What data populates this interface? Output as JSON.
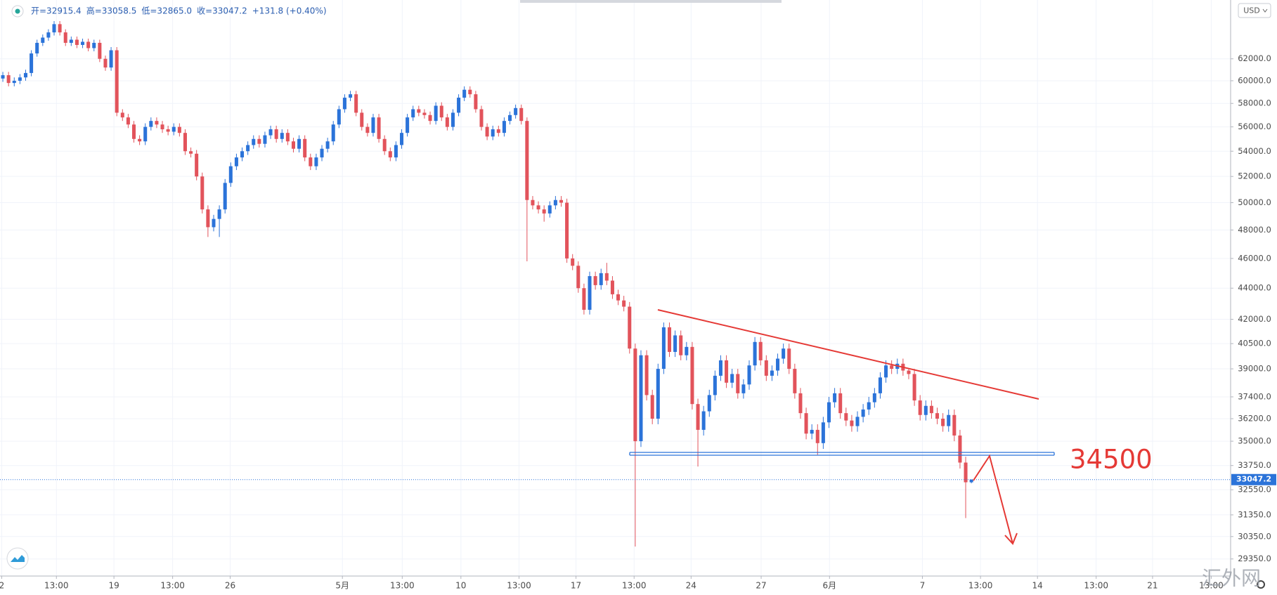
{
  "chart_data": {
    "type": "candlestick",
    "header": [
      "开=32915.4",
      "高=33058.5",
      "低=32865.0",
      "收=33047.2",
      "+131.8 (+0.40%)"
    ],
    "currency": "USD",
    "annotation": "34500",
    "watermark": "汇外网",
    "log": true,
    "grid": true,
    "up_color": "#2b73d9",
    "down_color": "#e2535b",
    "ylim": [
      28610,
      67700
    ],
    "xlim": [
      0,
      216
    ],
    "yticks": [
      {
        "value": 62000,
        "label": "62000.0"
      },
      {
        "value": 60000,
        "label": "60000.0"
      },
      {
        "value": 58000,
        "label": "58000.0"
      },
      {
        "value": 56000,
        "label": "56000.0"
      },
      {
        "value": 54000,
        "label": "54000.0"
      },
      {
        "value": 52000,
        "label": "52000.0"
      },
      {
        "value": 50000,
        "label": "50000.0"
      },
      {
        "value": 48000,
        "label": "48000.0"
      },
      {
        "value": 46000,
        "label": "46000.0"
      },
      {
        "value": 44000,
        "label": "44000.0"
      },
      {
        "value": 42000,
        "label": "42000.0"
      },
      {
        "value": 40500,
        "label": "40500.0"
      },
      {
        "value": 39000,
        "label": "39000.0"
      },
      {
        "value": 37400,
        "label": "37400.0"
      },
      {
        "value": 36200,
        "label": "36200.0"
      },
      {
        "value": 35000,
        "label": "35000.0"
      },
      {
        "value": 33750,
        "label": "33750.0"
      },
      {
        "value": 32550,
        "label": "32550.0"
      },
      {
        "value": 31350,
        "label": "31350.0"
      },
      {
        "value": 30350,
        "label": "30350.0"
      },
      {
        "value": 29350,
        "label": "29350.0"
      }
    ],
    "xticks": [
      {
        "value": 0.3,
        "label": "2"
      },
      {
        "value": 9.9,
        "label": "13:00"
      },
      {
        "value": 20,
        "label": "19"
      },
      {
        "value": 30.3,
        "label": "13:00"
      },
      {
        "value": 40.4,
        "label": "26"
      },
      {
        "value": 60.1,
        "label": "5月"
      },
      {
        "value": 70.6,
        "label": "13:00"
      },
      {
        "value": 80.9,
        "label": "10"
      },
      {
        "value": 91.1,
        "label": "13:00"
      },
      {
        "value": 101.1,
        "label": "17"
      },
      {
        "value": 111.3,
        "label": "13:00"
      },
      {
        "value": 121.3,
        "label": "24"
      },
      {
        "value": 133.6,
        "label": "27"
      },
      {
        "value": 145.6,
        "label": "6月"
      },
      {
        "value": 161.9,
        "label": "7"
      },
      {
        "value": 172.1,
        "label": "13:00"
      },
      {
        "value": 182.1,
        "label": "14"
      },
      {
        "value": 192.4,
        "label": "13:00"
      },
      {
        "value": 202.3,
        "label": "21"
      },
      {
        "value": 212.6,
        "label": "13:00"
      }
    ],
    "ohlc": [
      [
        60200,
        60800,
        59900,
        60500
      ],
      [
        60500,
        60800,
        59500,
        59800
      ],
      [
        59800,
        60300,
        59500,
        60000
      ],
      [
        60000,
        60600,
        59700,
        60300
      ],
      [
        60300,
        61000,
        60000,
        60700
      ],
      [
        60700,
        62800,
        60400,
        62500
      ],
      [
        62500,
        63800,
        62200,
        63500
      ],
      [
        63500,
        64300,
        63200,
        64000
      ],
      [
        64000,
        64800,
        63700,
        64500
      ],
      [
        64500,
        65600,
        64200,
        65300
      ],
      [
        65300,
        65600,
        64200,
        64500
      ],
      [
        64500,
        64800,
        63200,
        63500
      ],
      [
        63500,
        64100,
        63200,
        63800
      ],
      [
        63800,
        64100,
        63000,
        63300
      ],
      [
        63300,
        63900,
        63000,
        63600
      ],
      [
        63600,
        63900,
        62700,
        63000
      ],
      [
        63000,
        63800,
        62700,
        63500
      ],
      [
        63500,
        63800,
        61700,
        62000
      ],
      [
        62000,
        62300,
        60900,
        61200
      ],
      [
        61200,
        63100,
        60900,
        62800
      ],
      [
        62800,
        63100,
        56900,
        57200
      ],
      [
        57200,
        57500,
        56500,
        56800
      ],
      [
        56800,
        57100,
        55900,
        56200
      ],
      [
        56200,
        56500,
        54700,
        55000
      ],
      [
        55000,
        55300,
        54500,
        54800
      ],
      [
        54800,
        56300,
        54500,
        56000
      ],
      [
        56000,
        56800,
        55700,
        56500
      ],
      [
        56500,
        56800,
        55900,
        56200
      ],
      [
        56200,
        56500,
        55500,
        55800
      ],
      [
        55800,
        56100,
        55300,
        55600
      ],
      [
        55600,
        56300,
        55300,
        56000
      ],
      [
        56000,
        56300,
        55200,
        55500
      ],
      [
        55500,
        55800,
        53700,
        54000
      ],
      [
        54000,
        54300,
        53500,
        53800
      ],
      [
        53800,
        54100,
        51700,
        52000
      ],
      [
        52000,
        52300,
        49200,
        49500
      ],
      [
        49500,
        49800,
        47500,
        48200
      ],
      [
        48200,
        49100,
        47900,
        48800
      ],
      [
        48800,
        49800,
        47500,
        49500
      ],
      [
        49500,
        51800,
        49200,
        51500
      ],
      [
        51500,
        53100,
        51200,
        52800
      ],
      [
        52800,
        53800,
        52500,
        53500
      ],
      [
        53500,
        54300,
        53200,
        54000
      ],
      [
        54000,
        54800,
        53700,
        54500
      ],
      [
        54500,
        55300,
        54200,
        55000
      ],
      [
        55000,
        55300,
        54300,
        54600
      ],
      [
        54600,
        55600,
        54300,
        55300
      ],
      [
        55300,
        56100,
        55000,
        55800
      ],
      [
        55800,
        56100,
        54700,
        55000
      ],
      [
        55000,
        55800,
        54700,
        55500
      ],
      [
        55500,
        55800,
        54500,
        54800
      ],
      [
        54800,
        55100,
        53900,
        54200
      ],
      [
        54200,
        55300,
        53900,
        55000
      ],
      [
        55000,
        55300,
        53200,
        53500
      ],
      [
        53500,
        53800,
        52500,
        52800
      ],
      [
        52800,
        53800,
        52500,
        53500
      ],
      [
        53500,
        54500,
        53200,
        54200
      ],
      [
        54200,
        55100,
        53900,
        54800
      ],
      [
        54800,
        56500,
        54500,
        56200
      ],
      [
        56200,
        57800,
        55900,
        57500
      ],
      [
        57500,
        58800,
        57200,
        58500
      ],
      [
        58500,
        59100,
        58200,
        58800
      ],
      [
        58800,
        59100,
        56900,
        57200
      ],
      [
        57200,
        57500,
        55700,
        56000
      ],
      [
        56000,
        56300,
        55200,
        55500
      ],
      [
        55500,
        57100,
        55200,
        56800
      ],
      [
        56800,
        57100,
        54700,
        55000
      ],
      [
        55000,
        55300,
        53700,
        54000
      ],
      [
        54000,
        54300,
        53200,
        53500
      ],
      [
        53500,
        54800,
        53200,
        54500
      ],
      [
        54500,
        55800,
        54200,
        55500
      ],
      [
        55500,
        57100,
        55200,
        56800
      ],
      [
        56800,
        57800,
        56500,
        57500
      ],
      [
        57500,
        57800,
        56900,
        57200
      ],
      [
        57200,
        57500,
        56700,
        57000
      ],
      [
        57000,
        57300,
        56200,
        56500
      ],
      [
        56500,
        58100,
        56200,
        57800
      ],
      [
        57800,
        58100,
        56500,
        56800
      ],
      [
        56800,
        57100,
        55700,
        56000
      ],
      [
        56000,
        57500,
        55700,
        57200
      ],
      [
        57200,
        58800,
        56900,
        58500
      ],
      [
        58500,
        59500,
        58200,
        59200
      ],
      [
        59200,
        59500,
        58500,
        58800
      ],
      [
        58800,
        59100,
        57200,
        57500
      ],
      [
        57500,
        57800,
        55700,
        56000
      ],
      [
        56000,
        56300,
        54900,
        55200
      ],
      [
        55200,
        56100,
        54900,
        55800
      ],
      [
        55800,
        56100,
        55200,
        55500
      ],
      [
        55500,
        56800,
        55200,
        56500
      ],
      [
        56500,
        57300,
        56200,
        57000
      ],
      [
        57000,
        57900,
        56700,
        57600
      ],
      [
        57600,
        57900,
        56200,
        56500
      ],
      [
        56500,
        56800,
        45800,
        50200
      ],
      [
        50200,
        50500,
        49500,
        49800
      ],
      [
        49800,
        50100,
        49200,
        49500
      ],
      [
        49500,
        49800,
        48600,
        49200
      ],
      [
        49200,
        50100,
        48900,
        49800
      ],
      [
        49800,
        50500,
        49500,
        50200
      ],
      [
        50200,
        50500,
        49700,
        50000
      ],
      [
        50000,
        50300,
        45700,
        46000
      ],
      [
        46000,
        46300,
        45200,
        45500
      ],
      [
        45500,
        45800,
        43700,
        44000
      ],
      [
        44000,
        44300,
        42300,
        42600
      ],
      [
        42600,
        45100,
        42300,
        44800
      ],
      [
        44800,
        45100,
        43900,
        44200
      ],
      [
        44200,
        45300,
        43900,
        45000
      ],
      [
        45000,
        45700,
        44200,
        44500
      ],
      [
        44500,
        44800,
        43300,
        43600
      ],
      [
        43600,
        43900,
        42900,
        43200
      ],
      [
        43200,
        43500,
        42500,
        42800
      ],
      [
        42800,
        43100,
        39900,
        40200
      ],
      [
        40200,
        40500,
        29900,
        35000
      ],
      [
        35000,
        40100,
        34700,
        39800
      ],
      [
        39800,
        40100,
        37200,
        37500
      ],
      [
        37500,
        37800,
        35900,
        36200
      ],
      [
        36200,
        39300,
        35900,
        39000
      ],
      [
        39000,
        41800,
        38700,
        41500
      ],
      [
        41500,
        41800,
        39700,
        40000
      ],
      [
        40000,
        41300,
        39700,
        41000
      ],
      [
        41000,
        41300,
        39500,
        39800
      ],
      [
        39800,
        40600,
        39500,
        40300
      ],
      [
        40300,
        40600,
        36700,
        37000
      ],
      [
        37000,
        37300,
        33700,
        35600
      ],
      [
        35600,
        36900,
        35300,
        36600
      ],
      [
        36600,
        37800,
        36300,
        37500
      ],
      [
        37500,
        38900,
        37200,
        38600
      ],
      [
        38600,
        39800,
        38300,
        39500
      ],
      [
        39500,
        39800,
        37900,
        38200
      ],
      [
        38200,
        39000,
        37900,
        38700
      ],
      [
        38700,
        39000,
        37300,
        37600
      ],
      [
        37600,
        38400,
        37300,
        38100
      ],
      [
        38100,
        39500,
        37800,
        39200
      ],
      [
        39200,
        40900,
        38900,
        40600
      ],
      [
        40600,
        40900,
        39200,
        39500
      ],
      [
        39500,
        39800,
        38300,
        38600
      ],
      [
        38600,
        39200,
        38300,
        38900
      ],
      [
        38900,
        39900,
        38600,
        39600
      ],
      [
        39600,
        40500,
        39300,
        40200
      ],
      [
        40200,
        40500,
        38700,
        39000
      ],
      [
        39000,
        39300,
        37300,
        37600
      ],
      [
        37600,
        37900,
        36200,
        36500
      ],
      [
        36500,
        36800,
        35100,
        35400
      ],
      [
        35400,
        35900,
        35100,
        35600
      ],
      [
        35600,
        35900,
        34300,
        34900
      ],
      [
        34900,
        36300,
        34600,
        36000
      ],
      [
        36000,
        37400,
        35700,
        37100
      ],
      [
        37100,
        37900,
        36800,
        37600
      ],
      [
        37600,
        37900,
        36200,
        36500
      ],
      [
        36500,
        36800,
        35800,
        36100
      ],
      [
        36100,
        36400,
        35500,
        35800
      ],
      [
        35800,
        36600,
        35500,
        36300
      ],
      [
        36300,
        37000,
        36000,
        36700
      ],
      [
        36700,
        37400,
        36400,
        37100
      ],
      [
        37100,
        37900,
        36800,
        37600
      ],
      [
        37600,
        38800,
        37300,
        38500
      ],
      [
        38500,
        39500,
        38200,
        39200
      ],
      [
        39200,
        39500,
        38700,
        39000
      ],
      [
        39000,
        39600,
        38700,
        39300
      ],
      [
        39300,
        39600,
        38600,
        38900
      ],
      [
        38900,
        39000,
        38400,
        38700
      ],
      [
        38700,
        39000,
        36900,
        37200
      ],
      [
        37200,
        37500,
        36100,
        36400
      ],
      [
        36400,
        37200,
        36100,
        36900
      ],
      [
        36900,
        37200,
        36200,
        36500
      ],
      [
        36500,
        36800,
        35900,
        36200
      ],
      [
        36200,
        36500,
        35500,
        35800
      ],
      [
        35800,
        36700,
        35500,
        36400
      ],
      [
        36400,
        36700,
        35000,
        35300
      ],
      [
        35300,
        35600,
        33600,
        33900
      ],
      [
        33900,
        34200,
        31200,
        32915.4
      ],
      [
        32915.4,
        33058.5,
        32865.0,
        33047.2
      ]
    ]
  }
}
